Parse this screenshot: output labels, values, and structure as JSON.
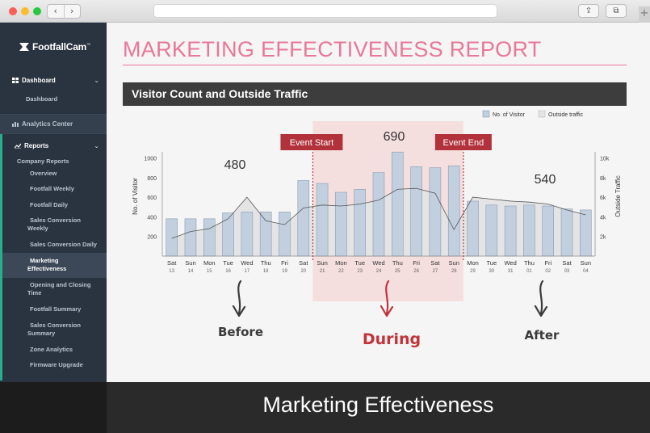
{
  "browser": {
    "back": "‹",
    "forward": "›",
    "share": "⇪",
    "tabs": "⧉",
    "new_tab": "+"
  },
  "sidebar": {
    "logo": "FootfallCam",
    "logo_tm": "™",
    "dashboard": {
      "label": "Dashboard",
      "items": [
        "Dashboard"
      ]
    },
    "analytics_center": "Analytics Center",
    "reports": {
      "label": "Reports",
      "group": "Company Reports",
      "items": [
        "Overview",
        "Footfall Weekly",
        "Footfall Daily",
        "Sales Conversion Weekly",
        "Sales Conversion Daily",
        "Marketing Effectiveness",
        "Opening and Closing Time",
        "Footfall Summary",
        "Sales Conversion Summary",
        "Zone Analytics",
        "Firmware Upgrade"
      ],
      "active_index": 5
    }
  },
  "report": {
    "title": "MARKETING EFFECTIVENESS REPORT",
    "section": "Visitor Count and Outside Traffic"
  },
  "chart_data": {
    "type": "bar",
    "days": [
      "Sat",
      "Sun",
      "Mon",
      "Tue",
      "Wed",
      "Thu",
      "Fri",
      "Sat",
      "Sun",
      "Mon",
      "Tue",
      "Wed",
      "Thu",
      "Fri",
      "Sat",
      "Sun",
      "Mon",
      "Tue",
      "Wed",
      "Thu",
      "Fri",
      "Sat",
      "Sun"
    ],
    "dates": [
      "13",
      "14",
      "15",
      "16",
      "17",
      "18",
      "19",
      "20",
      "21",
      "22",
      "23",
      "24",
      "25",
      "26",
      "27",
      "28",
      "29",
      "30",
      "31",
      "01",
      "02",
      "03",
      "04"
    ],
    "series": [
      {
        "name": "No. of Visitor",
        "kind": "bar",
        "color": "#c1cfde",
        "values": [
          380,
          380,
          380,
          440,
          450,
          450,
          450,
          770,
          740,
          650,
          680,
          850,
          1060,
          910,
          900,
          920,
          560,
          520,
          510,
          520,
          510,
          480,
          470
        ]
      },
      {
        "name": "Outside traffic",
        "kind": "area",
        "color": "#e3e3e3",
        "axis": "right",
        "values": [
          1800,
          2500,
          2800,
          3800,
          6000,
          3600,
          3200,
          4900,
          5200,
          5100,
          5300,
          5700,
          6800,
          6900,
          6400,
          2700,
          6000,
          5800,
          5600,
          5500,
          5300,
          4700,
          4200
        ]
      }
    ],
    "ylabel": "No. of Visitor",
    "ylabel_right": "Outside Traffic",
    "ylim": [
      0,
      1100
    ],
    "yticks": [
      200,
      400,
      600,
      800,
      1000
    ],
    "ylim_right": [
      0,
      11000
    ],
    "yticks_right": [
      "2k",
      "4k",
      "6k",
      "8k",
      "10k"
    ],
    "legend": {
      "position": "top-right",
      "items": [
        "No. of Visitor",
        "Outside traffic"
      ]
    },
    "event": {
      "start_label": "Event Start",
      "end_label": "Event End",
      "start_index": 8,
      "end_index": 16
    },
    "period_values": {
      "before": "480",
      "during": "690",
      "after": "540"
    },
    "period_labels": {
      "before": "Before",
      "during": "During",
      "after": "After"
    }
  },
  "caption": "Marketing Effectiveness"
}
